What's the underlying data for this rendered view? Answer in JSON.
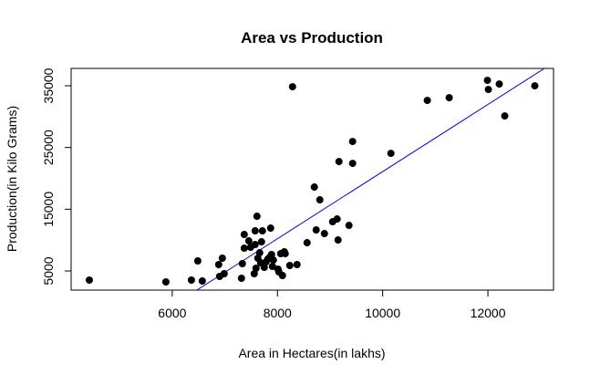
{
  "chart_data": {
    "type": "scatter",
    "title": "Area vs Production",
    "x_label": "Area in Hectares(in lakhs)",
    "y_label": "Production(in Kilo Grams)",
    "color": "#000000",
    "x": [
      4424,
      5879,
      6364,
      6571,
      6485,
      6883,
      6952,
      6987,
      6900,
      7316,
      7333,
      7368,
      7368,
      7455,
      7489,
      7576,
      7610,
      7576,
      7558,
      7593,
      7627,
      7662,
      7680,
      7697,
      7714,
      7749,
      7784,
      7818,
      7853,
      7870,
      7887,
      7905,
      7922,
      8009,
      8026,
      8061,
      8095,
      8130,
      8147,
      8234,
      8286,
      8372,
      8563,
      8701,
      8736,
      8805,
      8892,
      9048,
      9134,
      9151,
      9169,
      9359,
      9428,
      9428,
      10156,
      10848,
      11264,
      11991,
      12008,
      12216,
      12320,
      12891
    ],
    "y": [
      3523,
      3228,
      3523,
      3375,
      6625,
      6034,
      7068,
      4557,
      4114,
      3818,
      6182,
      8693,
      10908,
      9874,
      8840,
      9283,
      13862,
      11499,
      4557,
      5443,
      7068,
      7954,
      6329,
      9726,
      11499,
      5591,
      6477,
      6920,
      7216,
      11942,
      7659,
      5739,
      6772,
      5295,
      4852,
      7806,
      4261,
      8102,
      7806,
      5886,
      34835,
      6034,
      9578,
      18588,
      11647,
      16521,
      11056,
      12976,
      13419,
      10022,
      22724,
      12385,
      25973,
      22428,
      24053,
      32620,
      33063,
      35869,
      34392,
      35278,
      30109,
      34983
    ],
    "trend_line": {
      "intercept": -33262,
      "slope": 5.436,
      "color": "#0000ff"
    },
    "xlim": [
      4078,
      13247
    ],
    "ylim": [
      1898,
      37806
    ],
    "xticks": [
      6000,
      8000,
      10000,
      12000
    ],
    "yticks": [
      5000,
      15000,
      25000,
      35000
    ]
  }
}
